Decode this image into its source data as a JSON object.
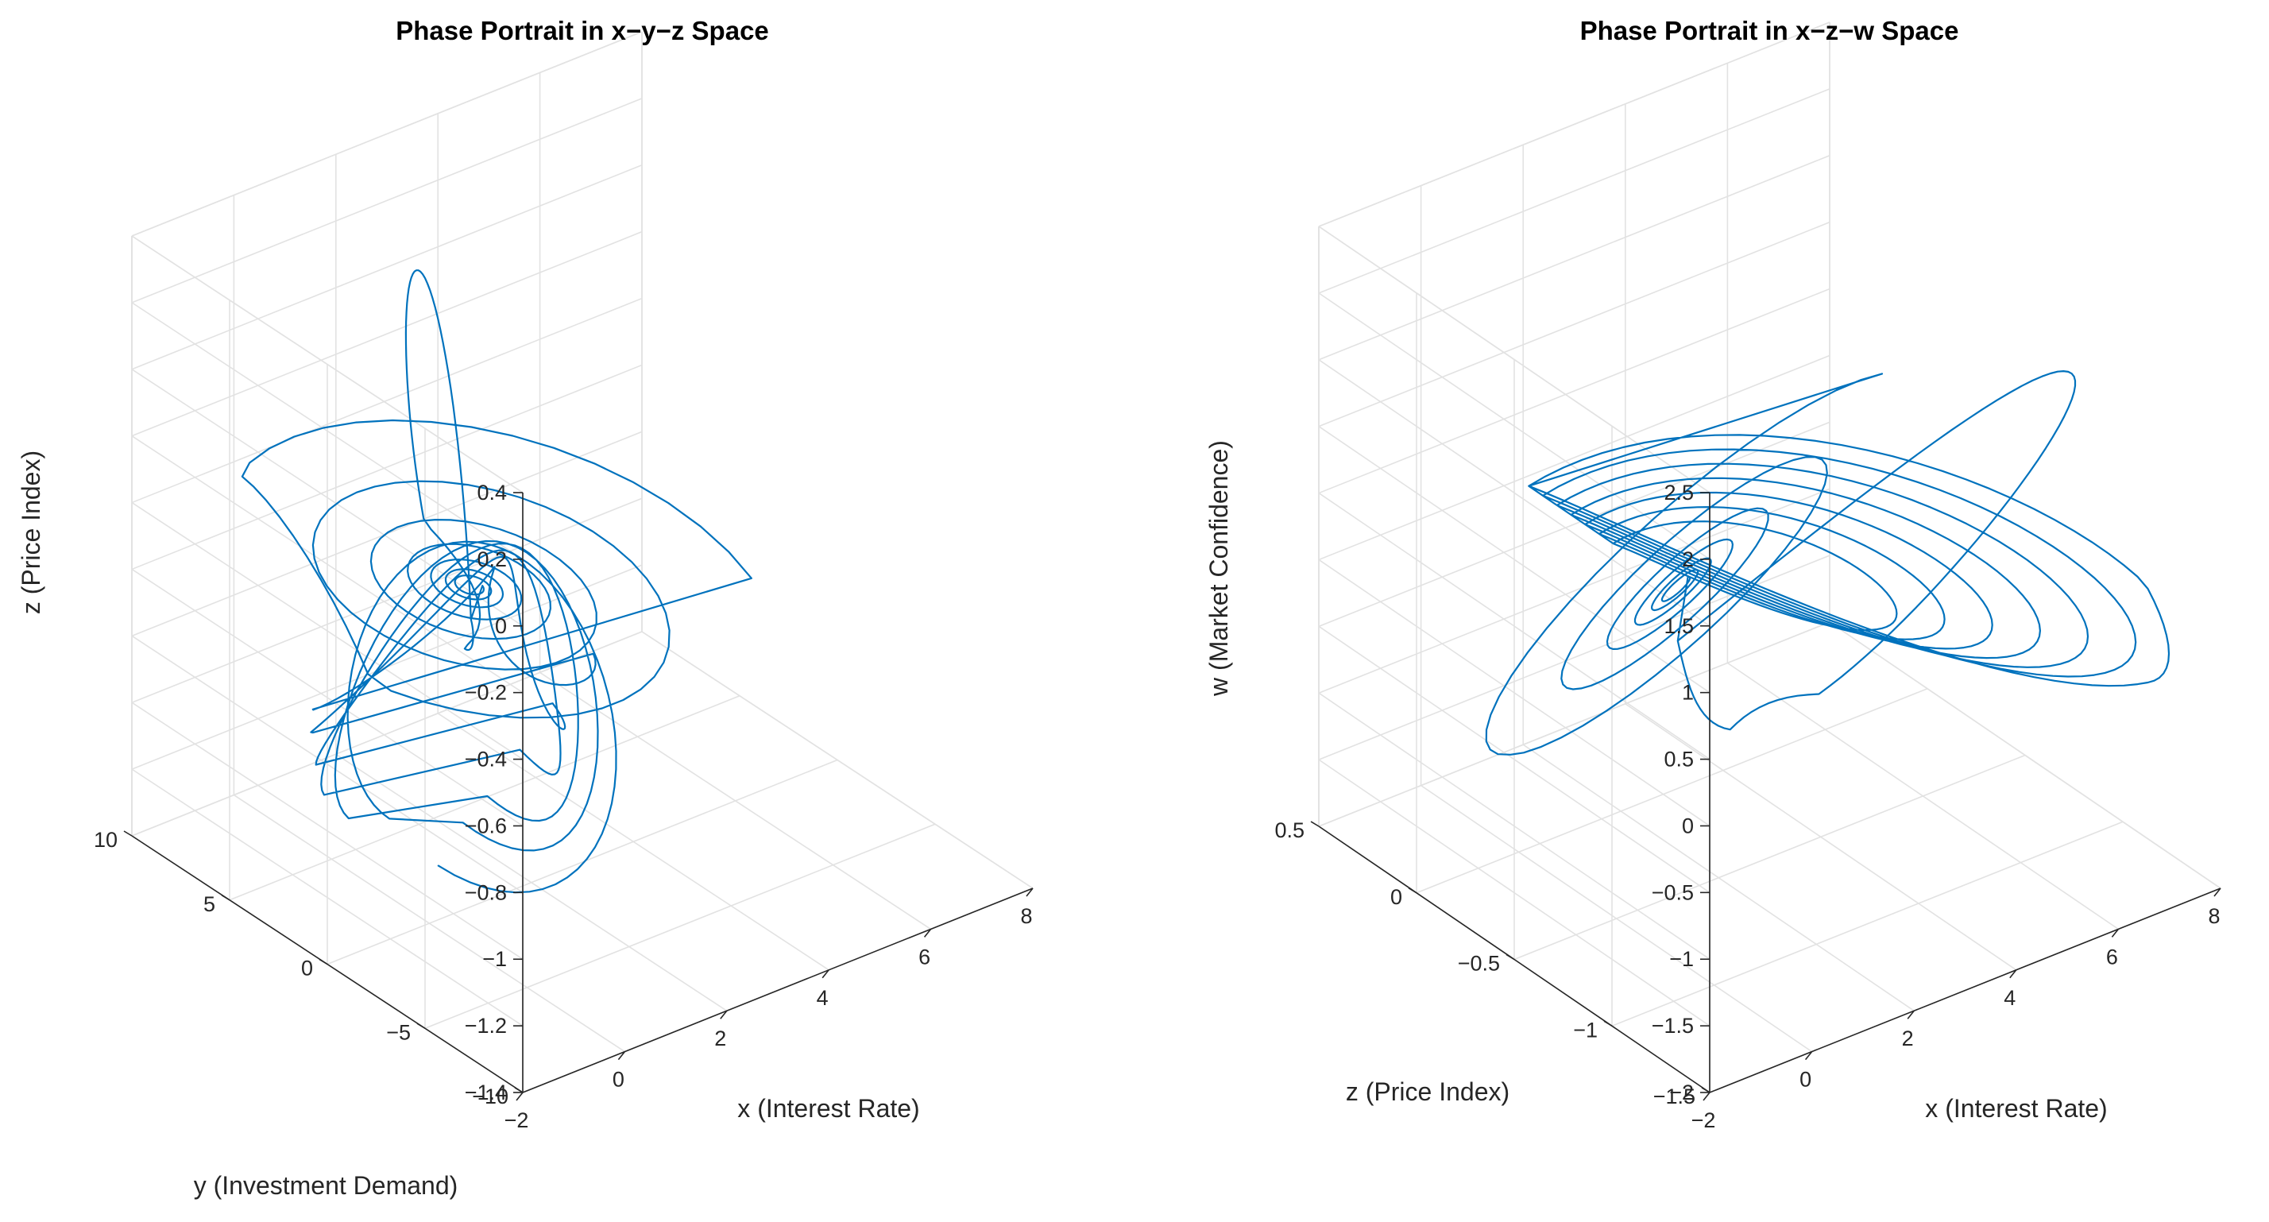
{
  "colors": {
    "line": "#0072BD",
    "grid": "#e2e2e2",
    "axis": "#262626",
    "background": "#ffffff"
  },
  "chart_data": [
    {
      "type": "line",
      "subtype": "3d-trajectory",
      "title": "Phase Portrait in x−y−z Space",
      "xlabel": "x (Interest Rate)",
      "ylabel": "y (Investment Demand)",
      "zlabel": "z (Price Index)",
      "xlim": [
        -2,
        8
      ],
      "ylim": [
        -10,
        10
      ],
      "zlim": [
        -1.4,
        0.4
      ],
      "xticks": [
        "−2",
        "0",
        "2",
        "4",
        "6",
        "8"
      ],
      "yticks": [
        "−10",
        "−5",
        "0",
        "5",
        "10"
      ],
      "zticks": [
        "−1.4",
        "−1.2",
        "−1",
        "−0.8",
        "−0.6",
        "−0.4",
        "−0.2",
        "0",
        "0.2",
        "0.4"
      ],
      "grid": true,
      "equilibrium": {
        "x": 1.2,
        "y": 1.0,
        "z": -0.5
      },
      "series": [
        {
          "points": []
        }
      ]
    },
    {
      "type": "line",
      "subtype": "3d-trajectory",
      "title": "Phase Portrait in x−z−w Space",
      "xlabel": "x (Interest Rate)",
      "ylabel": "z (Price Index)",
      "zlabel": "w (Market Confidence)",
      "xlim": [
        -2,
        8
      ],
      "ylim": [
        -1.5,
        0.5
      ],
      "zlim": [
        -2,
        2.5
      ],
      "xticks": [
        "−2",
        "0",
        "2",
        "4",
        "6",
        "8"
      ],
      "yticks": [
        "−1.5",
        "−1",
        "−0.5",
        "0",
        "0.5"
      ],
      "zticks": [
        "−2",
        "−1.5",
        "−1",
        "−0.5",
        "0",
        "0.5",
        "1",
        "1.5",
        "2",
        "2.5"
      ],
      "grid": true,
      "equilibrium": {
        "x": 1.2,
        "z": -0.5,
        "w": 0.3
      },
      "series": [
        {
          "points": []
        }
      ]
    }
  ]
}
